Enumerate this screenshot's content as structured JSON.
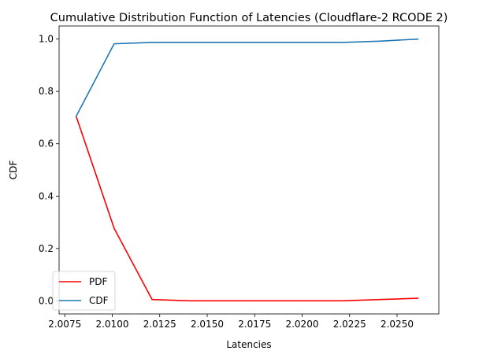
{
  "chart_data": {
    "type": "line",
    "title": "Cumulative Distribution Function of Latencies (Cloudflare-2 RCODE 2)",
    "xlabel": "Latencies",
    "ylabel": "CDF",
    "xlim": [
      2.0072,
      2.0272
    ],
    "ylim": [
      -0.05,
      1.05
    ],
    "xticks": [
      2.0075,
      2.01,
      2.0125,
      2.015,
      2.0175,
      2.02,
      2.0225,
      2.025
    ],
    "xtick_labels": [
      "2.0075",
      "2.0100",
      "2.0125",
      "2.0150",
      "2.0175",
      "2.0200",
      "2.0225",
      "2.0250"
    ],
    "yticks": [
      0.0,
      0.2,
      0.4,
      0.6,
      0.8,
      1.0
    ],
    "ytick_labels": [
      "0.0",
      "0.2",
      "0.4",
      "0.6",
      "0.8",
      "1.0"
    ],
    "grid": false,
    "legend_position": "lower-left",
    "x": [
      2.0081,
      2.0101,
      2.0121,
      2.0141,
      2.0161,
      2.0181,
      2.0201,
      2.0221,
      2.0241,
      2.0261
    ],
    "series": [
      {
        "name": "PDF",
        "color": "#ff0000",
        "values": [
          0.705,
          0.277,
          0.005,
          0.0,
          0.0,
          0.0,
          0.0,
          0.0,
          0.005,
          0.01
        ]
      },
      {
        "name": "CDF",
        "color": "#1f77b4",
        "values": [
          0.705,
          0.982,
          0.987,
          0.987,
          0.987,
          0.987,
          0.987,
          0.987,
          0.992,
          1.0
        ]
      }
    ]
  }
}
